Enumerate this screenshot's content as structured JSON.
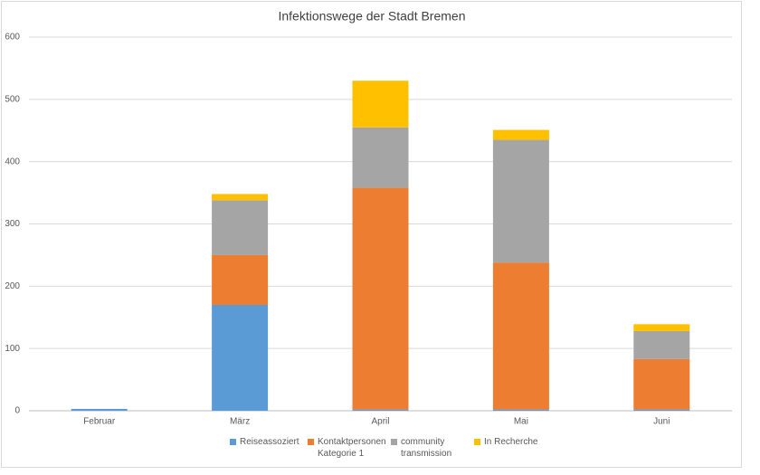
{
  "chart_data": {
    "type": "stacked_bar",
    "title": "Infektionswege der Stadt Bremen",
    "categories": [
      "Februar",
      "März",
      "April",
      "Mai",
      "Juni"
    ],
    "series": [
      {
        "name": "Reiseassoziert",
        "color": "#5b9bd5",
        "values": [
          3,
          170,
          2,
          2,
          2
        ]
      },
      {
        "name": "Kontaktpersonen Kategorie 1",
        "color": "#ed7d31",
        "values": [
          0,
          80,
          356,
          236,
          81
        ]
      },
      {
        "name": "community transmission",
        "color": "#a5a5a5",
        "values": [
          0,
          88,
          97,
          197,
          45
        ]
      },
      {
        "name": "In Recherche",
        "color": "#ffc000",
        "values": [
          0,
          10,
          75,
          16,
          11
        ]
      }
    ],
    "ylim": [
      0,
      600
    ],
    "yticks": [
      0,
      100,
      200,
      300,
      400,
      500,
      600
    ],
    "grid": true
  }
}
